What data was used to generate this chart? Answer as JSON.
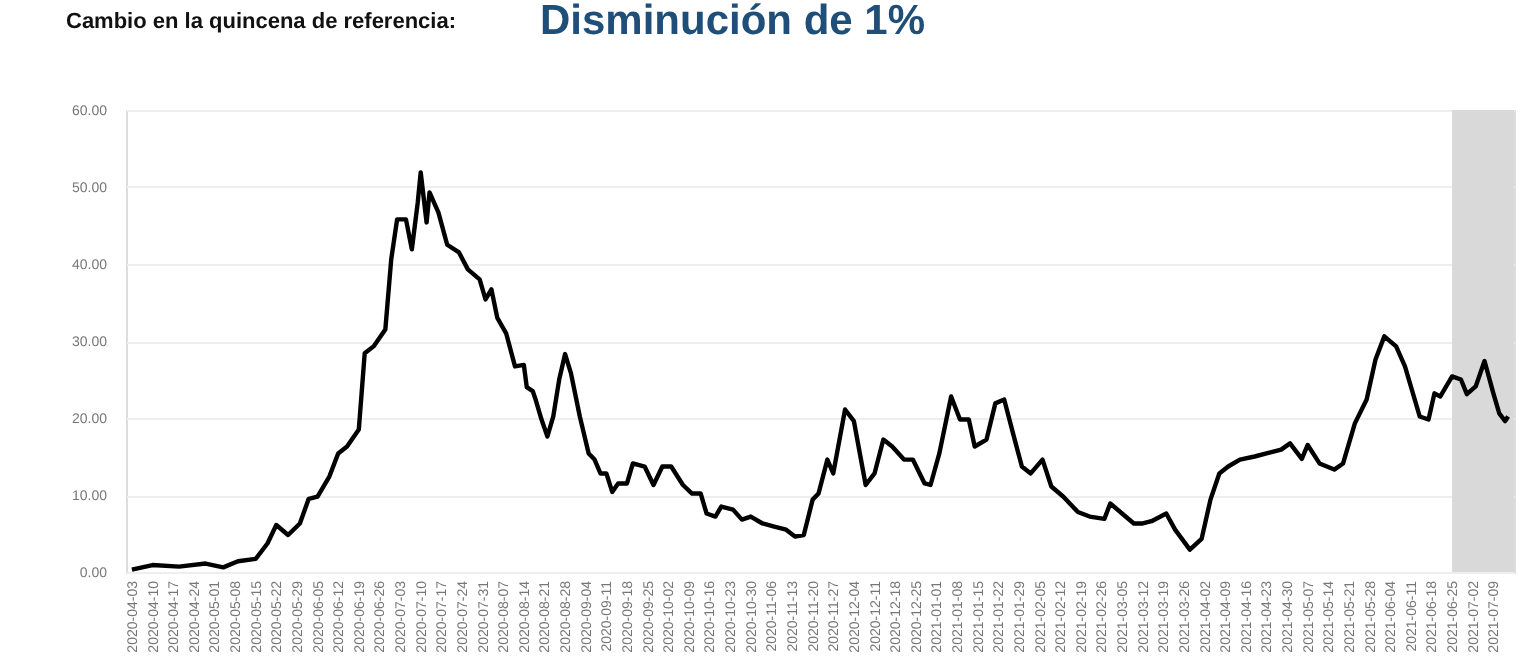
{
  "chart_data": {
    "type": "line",
    "title": "Cambio en la quincena de referencia:",
    "subtitle": "Disminución de 1%",
    "x": [
      "2020-04-03",
      "2020-04-10",
      "2020-04-19",
      "2020-04-28",
      "2020-05-04",
      "2020-05-09",
      "2020-05-15",
      "2020-05-19",
      "2020-05-22",
      "2020-05-26",
      "2020-05-30",
      "2020-06-02",
      "2020-06-05",
      "2020-06-09",
      "2020-06-12",
      "2020-06-15",
      "2020-06-19",
      "2020-06-21",
      "2020-06-24",
      "2020-06-28",
      "2020-06-30",
      "2020-07-02",
      "2020-07-05",
      "2020-07-07",
      "2020-07-09",
      "2020-07-10",
      "2020-07-12",
      "2020-07-13",
      "2020-07-16",
      "2020-07-19",
      "2020-07-23",
      "2020-07-26",
      "2020-07-30",
      "2020-08-01",
      "2020-08-03",
      "2020-08-05",
      "2020-08-08",
      "2020-08-11",
      "2020-08-14",
      "2020-08-15",
      "2020-08-17",
      "2020-08-18",
      "2020-08-20",
      "2020-08-22",
      "2020-08-24",
      "2020-08-26",
      "2020-08-28",
      "2020-08-30",
      "2020-09-02",
      "2020-09-05",
      "2020-09-07",
      "2020-09-09",
      "2020-09-11",
      "2020-09-13",
      "2020-09-15",
      "2020-09-18",
      "2020-09-20",
      "2020-09-24",
      "2020-09-27",
      "2020-09-30",
      "2020-10-03",
      "2020-10-07",
      "2020-10-10",
      "2020-10-13",
      "2020-10-15",
      "2020-10-18",
      "2020-10-20",
      "2020-10-24",
      "2020-10-27",
      "2020-10-30",
      "2020-11-03",
      "2020-11-07",
      "2020-11-11",
      "2020-11-14",
      "2020-11-17",
      "2020-11-20",
      "2020-11-22",
      "2020-11-25",
      "2020-11-27",
      "2020-12-01",
      "2020-12-04",
      "2020-12-08",
      "2020-12-11",
      "2020-12-14",
      "2020-12-17",
      "2020-12-21",
      "2020-12-24",
      "2020-12-28",
      "2020-12-30",
      "2021-01-02",
      "2021-01-06",
      "2021-01-09",
      "2021-01-12",
      "2021-01-14",
      "2021-01-18",
      "2021-01-21",
      "2021-01-24",
      "2021-01-27",
      "2021-01-30",
      "2021-02-02",
      "2021-02-06",
      "2021-02-09",
      "2021-02-13",
      "2021-02-18",
      "2021-02-22",
      "2021-02-27",
      "2021-03-01",
      "2021-03-05",
      "2021-03-09",
      "2021-03-12",
      "2021-03-15",
      "2021-03-20",
      "2021-03-23",
      "2021-03-28",
      "2021-04-01",
      "2021-04-04",
      "2021-04-07",
      "2021-04-10",
      "2021-04-14",
      "2021-04-19",
      "2021-04-23",
      "2021-04-28",
      "2021-05-01",
      "2021-05-05",
      "2021-05-07",
      "2021-05-11",
      "2021-05-16",
      "2021-05-19",
      "2021-05-23",
      "2021-05-27",
      "2021-05-30",
      "2021-06-02",
      "2021-06-06",
      "2021-06-09",
      "2021-06-14",
      "2021-06-17",
      "2021-06-19",
      "2021-06-21",
      "2021-06-25",
      "2021-06-28",
      "2021-06-30",
      "2021-07-03",
      "2021-07-06",
      "2021-07-09",
      "2021-07-11",
      "2021-07-13",
      "2021-07-14"
    ],
    "series": [
      {
        "color": "#000000",
        "values": [
          0.3,
          0.9,
          0.7,
          1.1,
          0.6,
          1.4,
          1.7,
          3.7,
          6.1,
          4.8,
          6.3,
          9.5,
          9.8,
          12.4,
          15.4,
          16.3,
          18.5,
          28.4,
          29.3,
          31.5,
          40.6,
          45.8,
          45.8,
          41.9,
          48,
          51.9,
          45.4,
          49.3,
          46.7,
          42.5,
          41.5,
          39.3,
          38,
          35.4,
          36.7,
          33,
          31,
          26.7,
          26.9,
          24,
          23.5,
          22.4,
          19.8,
          17.6,
          20.2,
          25,
          28.3,
          25.8,
          20.2,
          15.4,
          14.6,
          12.8,
          12.8,
          10.4,
          11.5,
          11.5,
          14.1,
          13.7,
          11.3,
          13.7,
          13.7,
          11.3,
          10.2,
          10.2,
          7.6,
          7.2,
          8.5,
          8.1,
          6.8,
          7.2,
          6.3,
          5.9,
          5.5,
          4.6,
          4.8,
          9.4,
          10.2,
          14.6,
          12.8,
          21.1,
          19.6,
          11.3,
          12.8,
          17.2,
          16.3,
          14.6,
          14.6,
          11.5,
          11.3,
          15.4,
          22.8,
          19.8,
          19.8,
          16.3,
          17.2,
          21.9,
          22.4,
          18,
          13.7,
          12.8,
          14.6,
          11.1,
          9.8,
          7.8,
          7.2,
          6.9,
          8.9,
          7.6,
          6.3,
          6.3,
          6.6,
          7.6,
          5.5,
          2.9,
          4.3,
          9.4,
          12.8,
          13.7,
          14.6,
          15,
          15.4,
          15.9,
          16.7,
          14.7,
          16.5,
          14.1,
          13.3,
          14.1,
          19.3,
          22.4,
          27.6,
          30.6,
          29.3,
          26.7,
          20.2,
          19.8,
          23.2,
          22.8,
          25.4,
          25,
          23.1,
          24.1,
          27.4,
          23.2,
          20.6,
          19.6,
          20.2
        ]
      }
    ],
    "xlim": [
      "2020-04-01",
      "2021-07-16"
    ],
    "xticks": [
      "2020-04-03",
      "2020-04-10",
      "2020-04-17",
      "2020-04-24",
      "2020-05-01",
      "2020-05-08",
      "2020-05-15",
      "2020-05-22",
      "2020-05-29",
      "2020-06-05",
      "2020-06-12",
      "2020-06-19",
      "2020-06-26",
      "2020-07-03",
      "2020-07-10",
      "2020-07-17",
      "2020-07-24",
      "2020-07-31",
      "2020-08-07",
      "2020-08-14",
      "2020-08-21",
      "2020-08-28",
      "2020-09-04",
      "2020-09-11",
      "2020-09-18",
      "2020-09-25",
      "2020-10-02",
      "2020-10-09",
      "2020-10-16",
      "2020-10-23",
      "2020-10-30",
      "2020-11-06",
      "2020-11-13",
      "2020-11-20",
      "2020-11-27",
      "2020-12-04",
      "2020-12-11",
      "2020-12-18",
      "2020-12-25",
      "2021-01-01",
      "2021-01-08",
      "2021-01-15",
      "2021-01-22",
      "2021-01-29",
      "2021-02-05",
      "2021-02-12",
      "2021-02-19",
      "2021-02-26",
      "2021-03-05",
      "2021-03-12",
      "2021-03-19",
      "2021-03-26",
      "2021-04-02",
      "2021-04-09",
      "2021-04-16",
      "2021-04-23",
      "2021-04-30",
      "2021-05-07",
      "2021-05-14",
      "2021-05-21",
      "2021-05-28",
      "2021-06-04",
      "2021-06-11",
      "2021-06-18",
      "2021-06-25",
      "2021-07-02",
      "2021-07-09"
    ],
    "ylim": [
      0,
      60
    ],
    "yticks": [
      {
        "value": 0,
        "label": "0.00"
      },
      {
        "value": 10,
        "label": "10.00"
      },
      {
        "value": 20,
        "label": "20.00"
      },
      {
        "value": 30,
        "label": "30.00"
      },
      {
        "value": 40,
        "label": "40.00"
      },
      {
        "value": 50,
        "label": "50.00"
      },
      {
        "value": 60,
        "label": "60.00"
      }
    ],
    "grid": "y",
    "marker": "none",
    "line_style": "solid",
    "bands": [
      {
        "axis": "x",
        "from": "2021-06-25",
        "to": "2021-07-16",
        "color": "#d9d9d9"
      }
    ]
  }
}
